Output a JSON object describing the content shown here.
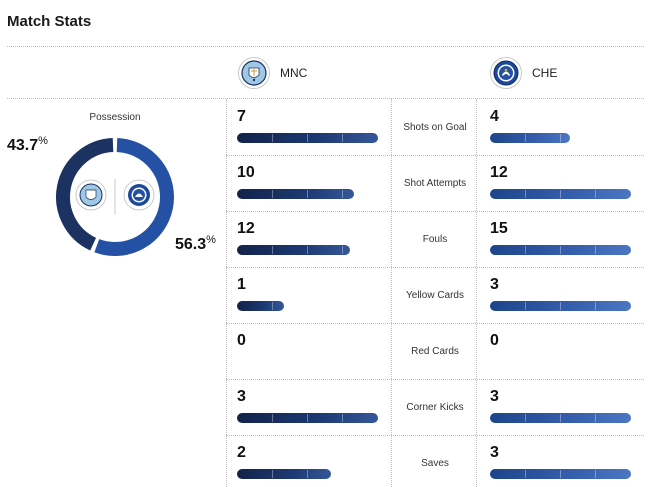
{
  "header": {
    "title": "Match Stats"
  },
  "teams": {
    "home": {
      "abbr": "MNC",
      "icon": "manchester-city-crest-icon",
      "color": "#1c3260"
    },
    "away": {
      "abbr": "CHE",
      "icon": "chelsea-crest-icon",
      "color": "#2451a3"
    }
  },
  "possession": {
    "label": "Possession",
    "home_pct": "43.7",
    "away_pct": "56.3",
    "home_value": 43.7,
    "away_value": 56.3,
    "pct_sign": "%"
  },
  "stats": [
    {
      "label": "Shots on Goal",
      "home": "7",
      "away": "4",
      "home_bar": 1.0,
      "away_bar": 0.57
    },
    {
      "label": "Shot Attempts",
      "home": "10",
      "away": "12",
      "home_bar": 0.83,
      "away_bar": 1.0
    },
    {
      "label": "Fouls",
      "home": "12",
      "away": "15",
      "home_bar": 0.8,
      "away_bar": 1.0
    },
    {
      "label": "Yellow Cards",
      "home": "1",
      "away": "3",
      "home_bar": 0.33,
      "away_bar": 1.0
    },
    {
      "label": "Red Cards",
      "home": "0",
      "away": "0",
      "home_bar": 0,
      "away_bar": 0
    },
    {
      "label": "Corner Kicks",
      "home": "3",
      "away": "3",
      "home_bar": 1.0,
      "away_bar": 1.0
    },
    {
      "label": "Saves",
      "home": "2",
      "away": "3",
      "home_bar": 0.67,
      "away_bar": 1.0
    }
  ]
}
